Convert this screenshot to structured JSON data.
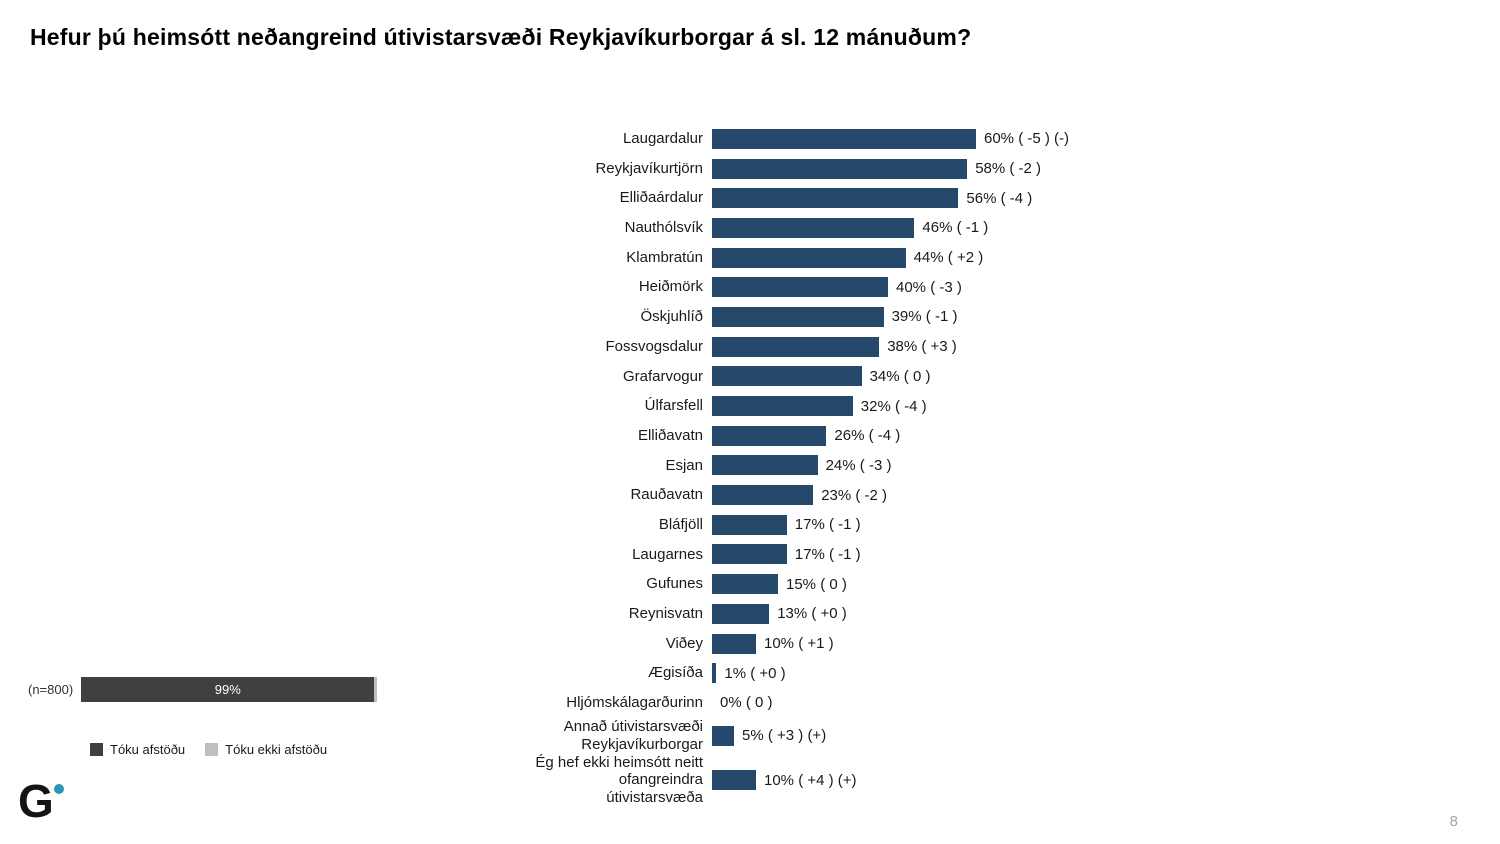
{
  "title": "Hefur þú heimsótt neðangreind útivistarsvæði Reykjavíkurborgar á sl. 12 mánuðum?",
  "page_number": "8",
  "logo": {
    "letter": "G",
    "dot_color": "#2E94B4"
  },
  "colors": {
    "bar": "#26486B",
    "took_stance": "#404040",
    "no_stance": "#BFBFBF",
    "text": "#1a1a1a"
  },
  "chart_data": [
    {
      "type": "bar",
      "orientation": "horizontal",
      "title": "Hefur þú heimsótt neðangreind útivistarsvæði Reykjavíkurborgar á sl. 12 mánuðum?",
      "bar_color": "#26486B",
      "xlim": [
        0,
        68
      ],
      "grid": false,
      "categories": [
        "Laugardalur",
        "Reykjavíkurtjörn",
        "Elliðaárdalur",
        "Nauthólsvík",
        "Klambratún",
        "Heiðmörk",
        "Öskjuhlíð",
        "Fossvogsdalur",
        "Grafarvogur",
        "Úlfarsfell",
        "Elliðavatn",
        "Esjan",
        "Rauðavatn",
        "Bláfjöll",
        "Laugarnes",
        "Gufunes",
        "Reynisvatn",
        "Viðey",
        "Ægisíða",
        "Hljómskálagarðurinn",
        "Annað útivistarsvæði Reykjavíkurborgar",
        "Ég hef ekki heimsótt neitt ofangreindra útivistarsvæða"
      ],
      "values": [
        60,
        58,
        56,
        46,
        44,
        40,
        39,
        38,
        34,
        32,
        26,
        24,
        23,
        17,
        17,
        15,
        13,
        10,
        1,
        0,
        5,
        10
      ],
      "value_labels": [
        "60% ( -5 ) (-)",
        "58% ( -2 )",
        "56% ( -4 )",
        "46% ( -1 )",
        "44% ( +2 )",
        "40% ( -3 )",
        "39% ( -1 )",
        "38% ( +3 )",
        "34% ( 0 )",
        "32% ( -4 )",
        "26% ( -4 )",
        "24% ( -3 )",
        "23% ( -2 )",
        "17% ( -1 )",
        "17% ( -1 )",
        "15% ( 0 )",
        "13% ( +0 )",
        "10% ( +1 )",
        "1% ( +0 )",
        "0% ( 0 )",
        "5% ( +3 ) (+)",
        "10% ( +4 ) (+)"
      ]
    },
    {
      "type": "bar",
      "orientation": "horizontal-stacked",
      "row_label": "(n=800)",
      "categories": [
        "(n=800)"
      ],
      "series": [
        {
          "name": "Tóku afstöðu",
          "values": [
            99
          ],
          "color": "#404040",
          "label": "99%"
        },
        {
          "name": "Tóku ekki afstöðu",
          "values": [
            1
          ],
          "color": "#BFBFBF",
          "label": ""
        }
      ],
      "legend_position": "bottom",
      "xlim": [
        0,
        100
      ]
    }
  ]
}
